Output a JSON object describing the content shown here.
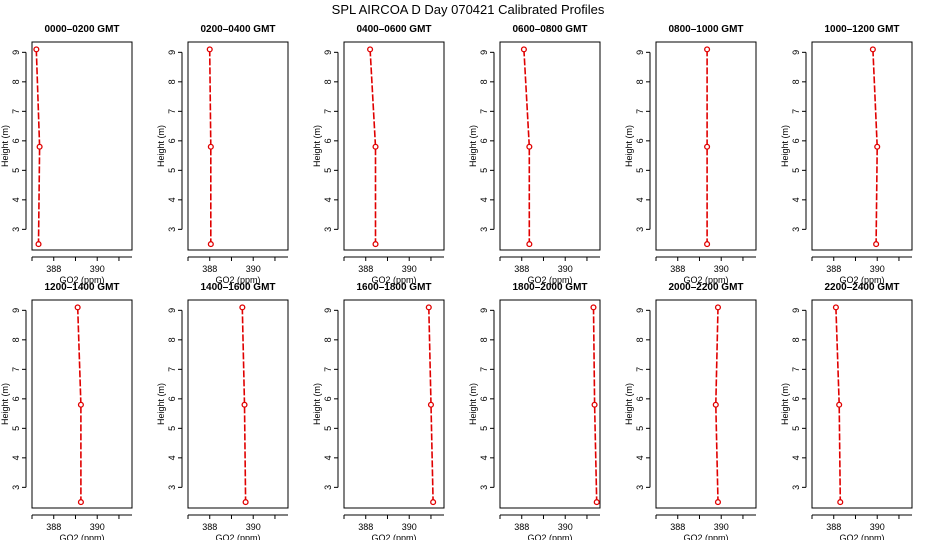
{
  "figure": {
    "title": "SPL AIRCOA D  Day 070421  Calibrated Profiles"
  },
  "colors": {
    "series": "#e00000",
    "axis": "#000000",
    "background": "#ffffff"
  },
  "chart_data": [
    {
      "type": "line",
      "title": "0000–0200 GMT",
      "xlabel": "GO2 (ppm)",
      "ylabel": "Height (m)",
      "xlim": [
        387.0,
        391.6
      ],
      "ylim": [
        2.3,
        9.35
      ],
      "xticks": [
        388,
        390
      ],
      "yticks": [
        3,
        4,
        5,
        6,
        7,
        8,
        9
      ],
      "x": [
        387.2,
        387.35,
        387.3
      ],
      "y": [
        9.1,
        5.8,
        2.5
      ]
    },
    {
      "type": "line",
      "title": "0200–0400 GMT",
      "xlabel": "GO2 (ppm)",
      "ylabel": "Height (m)",
      "xlim": [
        387.0,
        391.6
      ],
      "ylim": [
        2.3,
        9.35
      ],
      "xticks": [
        388,
        390
      ],
      "yticks": [
        3,
        4,
        5,
        6,
        7,
        8,
        9
      ],
      "x": [
        388.0,
        388.05,
        388.05
      ],
      "y": [
        9.1,
        5.8,
        2.5
      ]
    },
    {
      "type": "line",
      "title": "0400–0600 GMT",
      "xlabel": "GO2 (ppm)",
      "ylabel": "Height (m)",
      "xlim": [
        387.0,
        391.6
      ],
      "ylim": [
        2.3,
        9.35
      ],
      "xticks": [
        388,
        390
      ],
      "yticks": [
        3,
        4,
        5,
        6,
        7,
        8,
        9
      ],
      "x": [
        388.2,
        388.45,
        388.45
      ],
      "y": [
        9.1,
        5.8,
        2.5
      ]
    },
    {
      "type": "line",
      "title": "0600–0800 GMT",
      "xlabel": "GO2 (ppm)",
      "ylabel": "Height (m)",
      "xlim": [
        387.0,
        391.6
      ],
      "ylim": [
        2.3,
        9.35
      ],
      "xticks": [
        388,
        390
      ],
      "yticks": [
        3,
        4,
        5,
        6,
        7,
        8,
        9
      ],
      "x": [
        388.1,
        388.35,
        388.35
      ],
      "y": [
        9.1,
        5.8,
        2.5
      ]
    },
    {
      "type": "line",
      "title": "0800–1000 GMT",
      "xlabel": "GO2 (ppm)",
      "ylabel": "Height (m)",
      "xlim": [
        387.0,
        391.6
      ],
      "ylim": [
        2.3,
        9.35
      ],
      "xticks": [
        388,
        390
      ],
      "yticks": [
        3,
        4,
        5,
        6,
        7,
        8,
        9
      ],
      "x": [
        389.35,
        389.35,
        389.35
      ],
      "y": [
        9.1,
        5.8,
        2.5
      ]
    },
    {
      "type": "line",
      "title": "1000–1200 GMT",
      "xlabel": "GO2 (ppm)",
      "ylabel": "Height (m)",
      "xlim": [
        387.0,
        391.6
      ],
      "ylim": [
        2.3,
        9.35
      ],
      "xticks": [
        388,
        390
      ],
      "yticks": [
        3,
        4,
        5,
        6,
        7,
        8,
        9
      ],
      "x": [
        389.8,
        390.0,
        389.95
      ],
      "y": [
        9.1,
        5.8,
        2.5
      ]
    },
    {
      "type": "line",
      "title": "1200–1400 GMT",
      "xlabel": "GO2 (ppm)",
      "ylabel": "Height (m)",
      "xlim": [
        387.0,
        391.6
      ],
      "ylim": [
        2.3,
        9.35
      ],
      "xticks": [
        388,
        390
      ],
      "yticks": [
        3,
        4,
        5,
        6,
        7,
        8,
        9
      ],
      "x": [
        389.1,
        389.25,
        389.25
      ],
      "y": [
        9.1,
        5.8,
        2.5
      ]
    },
    {
      "type": "line",
      "title": "1400–1600 GMT",
      "xlabel": "GO2 (ppm)",
      "ylabel": "Height (m)",
      "xlim": [
        387.0,
        391.6
      ],
      "ylim": [
        2.3,
        9.35
      ],
      "xticks": [
        388,
        390
      ],
      "yticks": [
        3,
        4,
        5,
        6,
        7,
        8,
        9
      ],
      "x": [
        389.5,
        389.6,
        389.65
      ],
      "y": [
        9.1,
        5.8,
        2.5
      ]
    },
    {
      "type": "line",
      "title": "1600–1800 GMT",
      "xlabel": "GO2 (ppm)",
      "ylabel": "Height (m)",
      "xlim": [
        387.0,
        391.6
      ],
      "ylim": [
        2.3,
        9.35
      ],
      "xticks": [
        388,
        390
      ],
      "yticks": [
        3,
        4,
        5,
        6,
        7,
        8,
        9
      ],
      "x": [
        390.9,
        391.0,
        391.1
      ],
      "y": [
        9.1,
        5.8,
        2.5
      ]
    },
    {
      "type": "line",
      "title": "1800–2000 GMT",
      "xlabel": "GO2 (ppm)",
      "ylabel": "Height (m)",
      "xlim": [
        387.0,
        391.6
      ],
      "ylim": [
        2.3,
        9.35
      ],
      "xticks": [
        388,
        390
      ],
      "yticks": [
        3,
        4,
        5,
        6,
        7,
        8,
        9
      ],
      "x": [
        391.3,
        391.35,
        391.45
      ],
      "y": [
        9.1,
        5.8,
        2.5
      ]
    },
    {
      "type": "line",
      "title": "2000–2200 GMT",
      "xlabel": "GO2 (ppm)",
      "ylabel": "Height (m)",
      "xlim": [
        387.0,
        391.6
      ],
      "ylim": [
        2.3,
        9.35
      ],
      "xticks": [
        388,
        390
      ],
      "yticks": [
        3,
        4,
        5,
        6,
        7,
        8,
        9
      ],
      "x": [
        389.85,
        389.75,
        389.85
      ],
      "y": [
        9.1,
        5.8,
        2.5
      ]
    },
    {
      "type": "line",
      "title": "2200–2400 GMT",
      "xlabel": "GO2 (ppm)",
      "ylabel": "Height (m)",
      "xlim": [
        387.0,
        391.6
      ],
      "ylim": [
        2.3,
        9.35
      ],
      "xticks": [
        388,
        390
      ],
      "yticks": [
        3,
        4,
        5,
        6,
        7,
        8,
        9
      ],
      "x": [
        388.1,
        388.25,
        388.3
      ],
      "y": [
        9.1,
        5.8,
        2.5
      ]
    }
  ]
}
